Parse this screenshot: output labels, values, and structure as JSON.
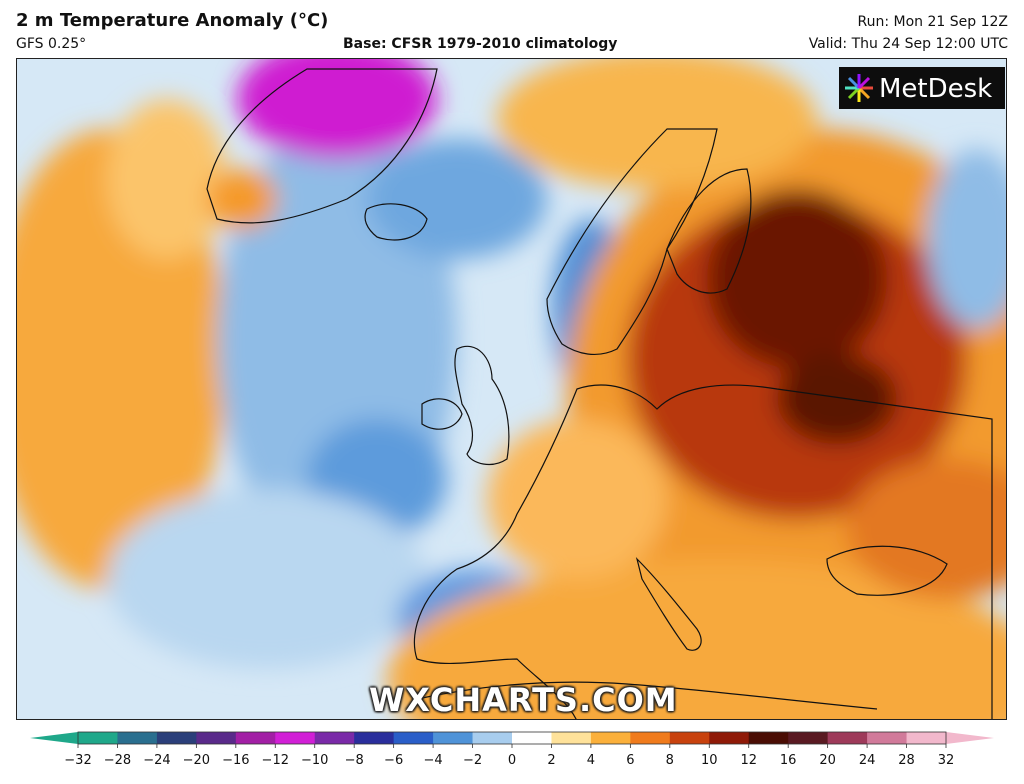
{
  "header": {
    "title": "2 m Temperature Anomaly (°C)",
    "model": "GFS 0.25°",
    "base": "Base: CFSR 1979-2010 climatology",
    "run": "Run: Mon 21 Sep 12Z",
    "valid": "Valid: Thu 24 Sep 12:00 UTC"
  },
  "logo": {
    "text": "MetDesk",
    "icon": "metdesk-sunburst-icon"
  },
  "watermark": "WXCHARTS.COM",
  "legend": {
    "ticks": [
      "−32",
      "−28",
      "−24",
      "−20",
      "−16",
      "−12",
      "−10",
      "−8",
      "−6",
      "−4",
      "−2",
      "0",
      "2",
      "4",
      "6",
      "8",
      "10",
      "12",
      "16",
      "20",
      "24",
      "28",
      "32"
    ],
    "colors": [
      "#1fa88a",
      "#2a6f8f",
      "#2b3f7a",
      "#5a2a8a",
      "#a21fa5",
      "#d11fd6",
      "#7a2aa8",
      "#2a2e9c",
      "#2a5ec8",
      "#4f93d8",
      "#a8cdee",
      "#ffffff",
      "#ffe29a",
      "#fbb03b",
      "#f07b1c",
      "#c8420e",
      "#8f1a08",
      "#4a0d04",
      "#5a1a22",
      "#9e3a5a",
      "#d17a9a",
      "#f2b8cc"
    ]
  },
  "colors": {
    "sea_base": "#d4e6f5",
    "cold": "#3f86d2",
    "warm": "#f59a2b",
    "hot": "#9a2608",
    "extreme": "#4a0d04"
  }
}
